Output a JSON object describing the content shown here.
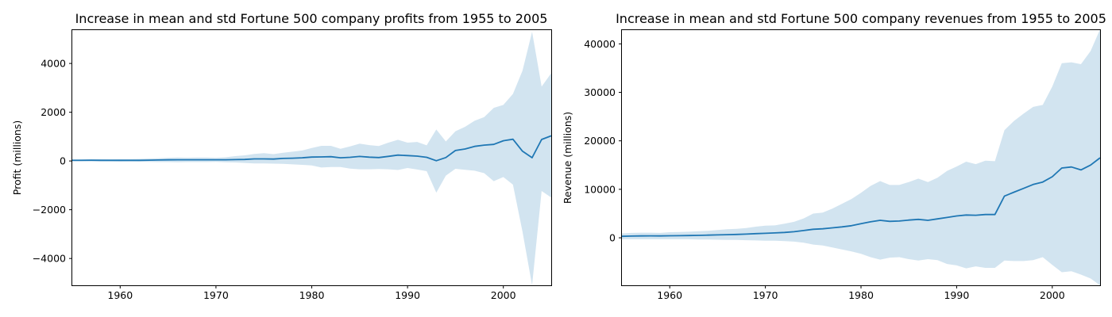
{
  "chart_data": [
    {
      "type": "line",
      "title": "Increase in mean and std Fortune 500 company profits from 1955 to 2005",
      "xlabel": "",
      "ylabel": "Profit (millions)",
      "xlim": [
        1955,
        2005
      ],
      "ylim": [
        -5100,
        5400
      ],
      "xticks": [
        1960,
        1970,
        1980,
        1990,
        2000
      ],
      "yticks": [
        -4000,
        -2000,
        0,
        2000,
        4000
      ],
      "yticklabels": [
        "−4000",
        "−2000",
        "0",
        "2000",
        "4000"
      ],
      "grid": false,
      "legend": "none",
      "series": [
        {
          "x": [
            1955,
            1956,
            1957,
            1958,
            1959,
            1960,
            1961,
            1962,
            1963,
            1964,
            1965,
            1966,
            1967,
            1968,
            1969,
            1970,
            1971,
            1972,
            1973,
            1974,
            1975,
            1976,
            1977,
            1978,
            1979,
            1980,
            1981,
            1982,
            1983,
            1984,
            1985,
            1986,
            1987,
            1988,
            1989,
            1990,
            1991,
            1992,
            1993,
            1994,
            1995,
            1996,
            1997,
            1998,
            1999,
            2000,
            2001,
            2002,
            2003,
            2004,
            2005
          ],
          "mean": [
            27,
            28,
            30,
            28,
            25,
            26,
            28,
            27,
            32,
            38,
            45,
            48,
            48,
            50,
            50,
            48,
            48,
            55,
            62,
            85,
            85,
            80,
            105,
            115,
            130,
            160,
            165,
            175,
            130,
            150,
            185,
            155,
            140,
            190,
            240,
            220,
            200,
            150,
            10,
            140,
            430,
            490,
            600,
            650,
            680,
            830,
            890,
            400,
            135,
            880,
            1030
          ],
          "upper": [
            40,
            60,
            70,
            75,
            70,
            80,
            80,
            85,
            100,
            115,
            130,
            140,
            135,
            140,
            140,
            130,
            150,
            200,
            230,
            290,
            320,
            280,
            340,
            380,
            430,
            530,
            620,
            620,
            500,
            600,
            710,
            650,
            610,
            750,
            870,
            750,
            780,
            640,
            1290,
            800,
            1220,
            1400,
            1650,
            1800,
            2180,
            2300,
            2750,
            3700,
            5300,
            3050,
            3600
          ],
          "lower": [
            15,
            5,
            -10,
            -20,
            -20,
            -30,
            -25,
            -30,
            -40,
            -45,
            -45,
            -50,
            -45,
            -45,
            -45,
            -40,
            -50,
            -60,
            -80,
            -100,
            -100,
            -110,
            -120,
            -140,
            -160,
            -180,
            -270,
            -250,
            -250,
            -310,
            -340,
            -340,
            -330,
            -340,
            -370,
            -290,
            -350,
            -420,
            -1300,
            -600,
            -320,
            -360,
            -400,
            -500,
            -830,
            -660,
            -970,
            -2900,
            -5100,
            -1230,
            -1500
          ]
        }
      ]
    },
    {
      "type": "line",
      "title": "Increase in mean and std Fortune 500 company revenues from 1955 to 2005",
      "xlabel": "",
      "ylabel": "Revenue (millions)",
      "xlim": [
        1955,
        2005
      ],
      "ylim": [
        -9800,
        43000
      ],
      "xticks": [
        1960,
        1970,
        1980,
        1990,
        2000
      ],
      "yticks": [
        0,
        10000,
        20000,
        30000,
        40000
      ],
      "yticklabels": [
        "0",
        "10000",
        "20000",
        "30000",
        "40000"
      ],
      "grid": false,
      "legend": "none",
      "series": [
        {
          "x": [
            1955,
            1956,
            1957,
            1958,
            1959,
            1960,
            1961,
            1962,
            1963,
            1964,
            1965,
            1966,
            1967,
            1968,
            1969,
            1970,
            1971,
            1972,
            1973,
            1974,
            1975,
            1976,
            1977,
            1978,
            1979,
            1980,
            1981,
            1982,
            1983,
            1984,
            1985,
            1986,
            1987,
            1988,
            1989,
            1990,
            1991,
            1992,
            1993,
            1994,
            1995,
            1996,
            1997,
            1998,
            1999,
            2000,
            2001,
            2002,
            2003,
            2004,
            2005
          ],
          "mean": [
            300,
            350,
            380,
            400,
            380,
            420,
            440,
            460,
            500,
            540,
            590,
            650,
            700,
            760,
            850,
            930,
            1000,
            1100,
            1250,
            1500,
            1750,
            1850,
            2050,
            2250,
            2500,
            2900,
            3300,
            3600,
            3400,
            3450,
            3650,
            3800,
            3600,
            3900,
            4200,
            4500,
            4700,
            4650,
            4800,
            4800,
            8600,
            9400,
            10200,
            11000,
            11500,
            12600,
            14400,
            14600,
            14000,
            15000,
            16500
          ]
        },
        {
          "x": [
            1955,
            1956,
            1957,
            1958,
            1959,
            1960,
            1961,
            1962,
            1963,
            1964,
            1965,
            1966,
            1967,
            1968,
            1969,
            1970,
            1971,
            1972,
            1973,
            1974,
            1975,
            1976,
            1977,
            1978,
            1979,
            1980,
            1981,
            1982,
            1983,
            1984,
            1985,
            1986,
            1987,
            1988,
            1989,
            1990,
            1991,
            1992,
            1993,
            1994,
            1995,
            1996,
            1997,
            1998,
            1999,
            2000,
            2001,
            2002,
            2003,
            2004,
            2005
          ],
          "upper": [
            900,
            1000,
            1050,
            1050,
            1000,
            1150,
            1200,
            1250,
            1350,
            1450,
            1600,
            1750,
            1850,
            2000,
            2300,
            2500,
            2550,
            2900,
            3300,
            4000,
            5000,
            5200,
            6000,
            7000,
            8000,
            9300,
            10700,
            11700,
            10900,
            10900,
            11500,
            12200,
            11500,
            12400,
            13800,
            14700,
            15700,
            15200,
            15900,
            15800,
            22200,
            24100,
            25600,
            27000,
            27400,
            31200,
            36000,
            36200,
            35800,
            38500,
            43000
          ]
        },
        {
          "x": [
            1955,
            1956,
            1957,
            1958,
            1959,
            1960,
            1961,
            1962,
            1963,
            1964,
            1965,
            1966,
            1967,
            1968,
            1969,
            1970,
            1971,
            1972,
            1973,
            1974,
            1975,
            1976,
            1977,
            1978,
            1979,
            1980,
            1981,
            1982,
            1983,
            1984,
            1985,
            1986,
            1987,
            1988,
            1989,
            1990,
            1991,
            1992,
            1993,
            1994,
            1995,
            1996,
            1997,
            1998,
            1999,
            2000,
            2001,
            2002,
            2003,
            2004,
            2005
          ],
          "lower": [
            -300,
            -300,
            -300,
            -300,
            -300,
            -300,
            -300,
            -300,
            -350,
            -350,
            -400,
            -450,
            -450,
            -500,
            -550,
            -600,
            -600,
            -700,
            -800,
            -1000,
            -1400,
            -1600,
            -2000,
            -2400,
            -2800,
            -3300,
            -4000,
            -4500,
            -4100,
            -4000,
            -4400,
            -4700,
            -4400,
            -4600,
            -5400,
            -5700,
            -6300,
            -5900,
            -6200,
            -6200,
            -4700,
            -4800,
            -4800,
            -4600,
            -4000,
            -5600,
            -7100,
            -6900,
            -7600,
            -8400,
            -9800
          ]
        }
      ]
    }
  ],
  "colors": {
    "line": "#1f77b4",
    "band": "#1f77b4",
    "band_opacity": 0.2
  }
}
